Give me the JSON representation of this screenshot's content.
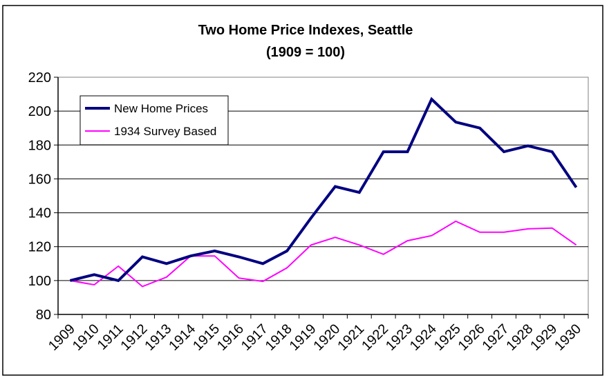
{
  "chart_data": {
    "type": "line",
    "title": "Two Home Price Indexes, Seattle",
    "subtitle": "(1909 = 100)",
    "xlabel": "",
    "ylabel": "",
    "categories": [
      "1909",
      "1910",
      "1911",
      "1912",
      "1913",
      "1914",
      "1915",
      "1916",
      "1917",
      "1918",
      "1919",
      "1920",
      "1921",
      "1922",
      "1923",
      "1924",
      "1925",
      "1926",
      "1927",
      "1928",
      "1929",
      "1930"
    ],
    "ylim": [
      80,
      220
    ],
    "yticks": [
      80,
      100,
      120,
      140,
      160,
      180,
      200,
      220
    ],
    "grid": true,
    "legend_position": "top-left",
    "series": [
      {
        "name": "New Home Prices",
        "color": "#000080",
        "values": [
          100,
          103.5,
          100,
          114,
          110,
          114.5,
          117.5,
          114,
          110,
          117.5,
          137,
          155.5,
          152,
          176,
          176,
          207,
          193.5,
          190,
          176,
          179.5,
          176,
          155
        ]
      },
      {
        "name": "1934 Survey Based",
        "color": "#ff00ff",
        "values": [
          100,
          97.5,
          108.5,
          96.5,
          102,
          114.5,
          114.5,
          101.5,
          99.5,
          107.5,
          121,
          125.5,
          121,
          115.5,
          123.5,
          126.5,
          135,
          128.5,
          128.5,
          130.5,
          131,
          121
        ]
      }
    ]
  }
}
